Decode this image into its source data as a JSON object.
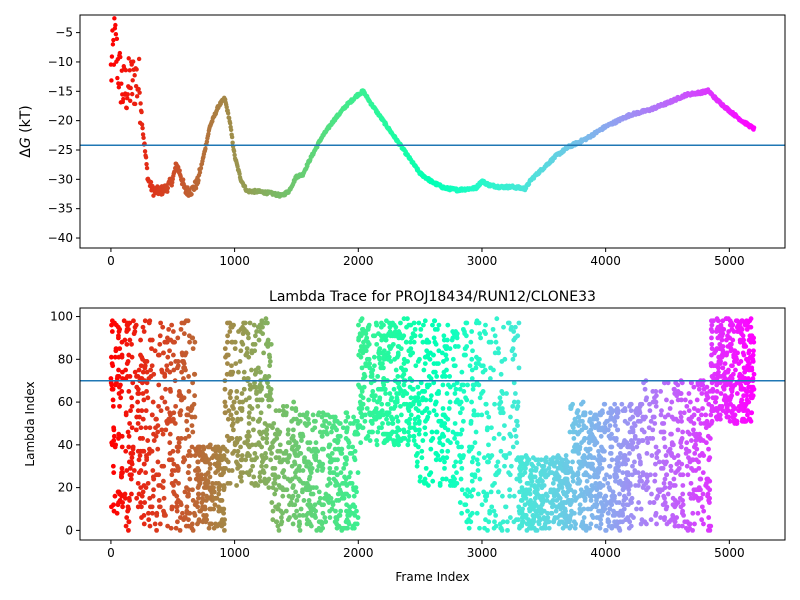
{
  "chart_data": [
    {
      "type": "scatter",
      "title": "",
      "xlabel": "",
      "ylabel": "ΔG (kT)",
      "ylabel_parts": [
        "Δ",
        "G",
        " (kT)"
      ],
      "xlim": [
        -250,
        5450
      ],
      "ylim": [
        -41.7,
        -2
      ],
      "x_ticks": [
        0,
        1000,
        2000,
        3000,
        4000,
        5000
      ],
      "y_ticks": [
        -5,
        -10,
        -15,
        -20,
        -25,
        -30,
        -35,
        -40
      ],
      "hline": -24.2,
      "hline_color": "#1f77b4",
      "colormap": "rainbow (reversed along frame index)",
      "trace_control_points": [
        [
          0,
          -12
        ],
        [
          30,
          -6
        ],
        [
          60,
          -11
        ],
        [
          100,
          -15
        ],
        [
          150,
          -14
        ],
        [
          200,
          -13
        ],
        [
          230,
          -14
        ],
        [
          260,
          -22
        ],
        [
          300,
          -30
        ],
        [
          340,
          -32
        ],
        [
          400,
          -32
        ],
        [
          450,
          -31.5
        ],
        [
          500,
          -30
        ],
        [
          530,
          -27.5
        ],
        [
          560,
          -29
        ],
        [
          600,
          -32
        ],
        [
          650,
          -32
        ],
        [
          700,
          -30.5
        ],
        [
          750,
          -26
        ],
        [
          800,
          -21
        ],
        [
          870,
          -17.5
        ],
        [
          920,
          -16.2
        ],
        [
          960,
          -20
        ],
        [
          1000,
          -26
        ],
        [
          1050,
          -30
        ],
        [
          1100,
          -32
        ],
        [
          1200,
          -32.1
        ],
        [
          1300,
          -32.4
        ],
        [
          1380,
          -32.8
        ],
        [
          1440,
          -32
        ],
        [
          1500,
          -29.5
        ],
        [
          1550,
          -29.2
        ],
        [
          1600,
          -27
        ],
        [
          1700,
          -23
        ],
        [
          1800,
          -20
        ],
        [
          1900,
          -17.5
        ],
        [
          2000,
          -15.5
        ],
        [
          2040,
          -15
        ],
        [
          2100,
          -17
        ],
        [
          2200,
          -20
        ],
        [
          2300,
          -23
        ],
        [
          2400,
          -26
        ],
        [
          2500,
          -29
        ],
        [
          2600,
          -30.5
        ],
        [
          2700,
          -31.5
        ],
        [
          2800,
          -31.8
        ],
        [
          2950,
          -31.5
        ],
        [
          3000,
          -30.3
        ],
        [
          3060,
          -31
        ],
        [
          3150,
          -31.3
        ],
        [
          3250,
          -31.3
        ],
        [
          3350,
          -31.6
        ],
        [
          3400,
          -30
        ],
        [
          3500,
          -28
        ],
        [
          3600,
          -26
        ],
        [
          3700,
          -24.5
        ],
        [
          3850,
          -23
        ],
        [
          4000,
          -21
        ],
        [
          4100,
          -20
        ],
        [
          4200,
          -19
        ],
        [
          4350,
          -18.2
        ],
        [
          4500,
          -17
        ],
        [
          4650,
          -15.6
        ],
        [
          4800,
          -15.1
        ],
        [
          4830,
          -14.9
        ],
        [
          4900,
          -16.5
        ],
        [
          5000,
          -18.3
        ],
        [
          5100,
          -20
        ],
        [
          5200,
          -21.4
        ]
      ]
    },
    {
      "type": "scatter",
      "title": "Lambda Trace for PROJ18434/RUN12/CLONE33",
      "xlabel": "Frame Index",
      "ylabel": "Lambda Index",
      "xlim": [
        -250,
        5450
      ],
      "ylim": [
        -4.5,
        104
      ],
      "x_ticks": [
        0,
        1000,
        2000,
        3000,
        4000,
        5000
      ],
      "y_ticks": [
        0,
        20,
        40,
        60,
        80,
        100
      ],
      "hline": 70,
      "hline_color": "#1f77b4",
      "colormap": "rainbow (reversed along frame index)",
      "lambda_bands": [
        {
          "x_range": [
            0,
            60
          ],
          "y_range": [
            0,
            98
          ],
          "density": 40
        },
        {
          "x_range": [
            60,
            300
          ],
          "y_range": [
            0,
            99
          ],
          "density": 180
        },
        {
          "x_range": [
            300,
            680
          ],
          "y_range": [
            0,
            99
          ],
          "density": 260
        },
        {
          "x_range": [
            680,
            920
          ],
          "y_range": [
            0,
            40
          ],
          "density": 180
        },
        {
          "x_range": [
            920,
            1300
          ],
          "y_range": [
            20,
            99
          ],
          "density": 280
        },
        {
          "x_range": [
            1300,
            1500
          ],
          "y_range": [
            0,
            60
          ],
          "density": 120
        },
        {
          "x_range": [
            1500,
            2000
          ],
          "y_range": [
            0,
            55
          ],
          "density": 330
        },
        {
          "x_range": [
            2000,
            2450
          ],
          "y_range": [
            40,
            99
          ],
          "density": 340
        },
        {
          "x_range": [
            2450,
            2800
          ],
          "y_range": [
            20,
            99
          ],
          "density": 220
        },
        {
          "x_range": [
            2800,
            3300
          ],
          "y_range": [
            0,
            99
          ],
          "density": 260
        },
        {
          "x_range": [
            3300,
            3700
          ],
          "y_range": [
            0,
            35
          ],
          "density": 330
        },
        {
          "x_range": [
            3700,
            4300
          ],
          "y_range": [
            0,
            60
          ],
          "density": 520
        },
        {
          "x_range": [
            4300,
            4850
          ],
          "y_range": [
            0,
            70
          ],
          "density": 330
        },
        {
          "x_range": [
            4850,
            5200
          ],
          "y_range": [
            50,
            99
          ],
          "density": 340
        }
      ]
    }
  ]
}
